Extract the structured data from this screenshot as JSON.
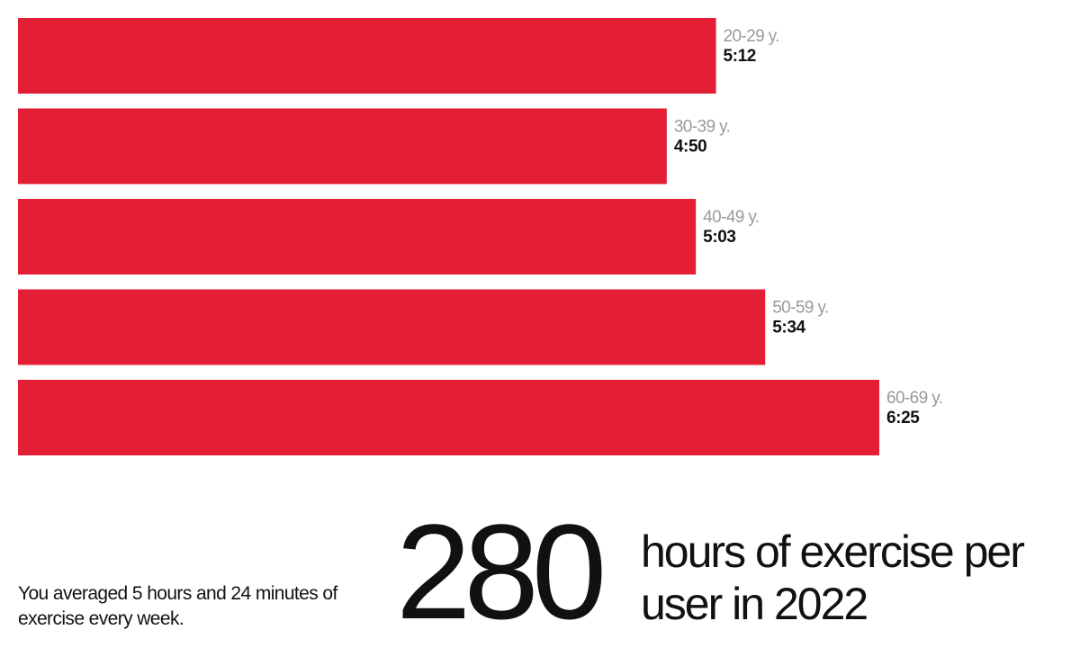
{
  "chart_data": {
    "type": "bar",
    "orientation": "horizontal",
    "categories": [
      "20-29 y.",
      "30-39 y.",
      "40-49 y.",
      "50-59 y.",
      "60-69 y."
    ],
    "values": [
      312,
      290,
      303,
      334,
      385
    ],
    "value_labels": [
      "5:12",
      "4:50",
      "5:03",
      "5:34",
      "6:25"
    ],
    "unit": "minutes per week",
    "bar_color": "#e31e35",
    "xlim": [
      0,
      400
    ],
    "grid": false,
    "legend": "none"
  },
  "summary": {
    "note": "You averaged 5 hours and 24 minutes of exercise every week.",
    "big_number": "280",
    "headline": "hours of exercise per user in 2022"
  }
}
